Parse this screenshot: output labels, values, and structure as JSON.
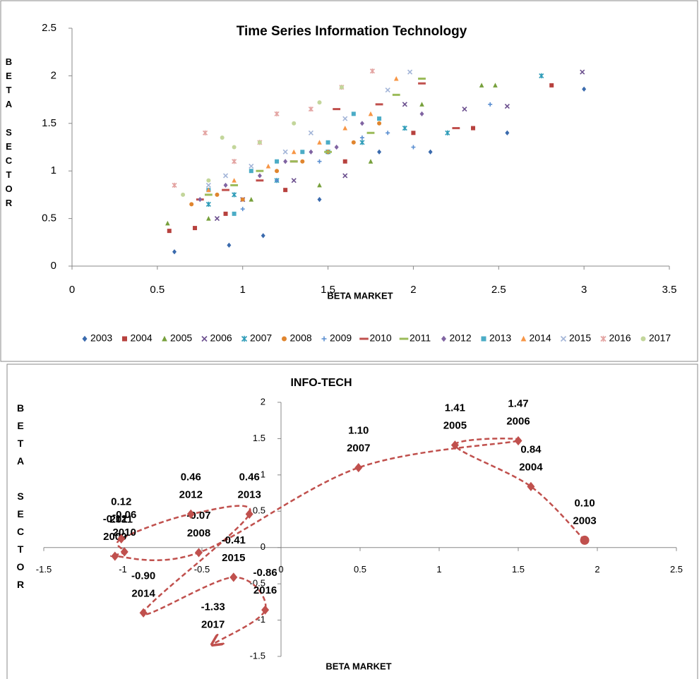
{
  "chart_data": [
    {
      "type": "scatter",
      "title": "Time Series Information Technology",
      "x_label": "BETA MARKET",
      "y_label": "BETA SECTOR",
      "xlim": [
        0,
        3.5
      ],
      "xticks": [
        0,
        0.5,
        1,
        1.5,
        2,
        2.5,
        3,
        3.5
      ],
      "ylim": [
        0,
        2.5
      ],
      "yticks": [
        0,
        0.5,
        1,
        1.5,
        2,
        2.5
      ],
      "legend": "bottom",
      "series": [
        {
          "name": "2003",
          "color": "#3a6aad",
          "marker": "diamond",
          "x": [
            0.6,
            0.92,
            1.12,
            1.45,
            1.8,
            2.1,
            2.55,
            3.0
          ],
          "values": [
            0.15,
            0.22,
            0.32,
            0.7,
            1.2,
            1.2,
            1.4,
            1.86
          ]
        },
        {
          "name": "2004",
          "color": "#b7413e",
          "marker": "square",
          "x": [
            0.57,
            0.72,
            0.9,
            1.25,
            1.6,
            2.0,
            2.35,
            2.81
          ],
          "values": [
            0.37,
            0.4,
            0.55,
            0.8,
            1.1,
            1.4,
            1.45,
            1.9
          ]
        },
        {
          "name": "2005",
          "color": "#77a03c",
          "marker": "triangle",
          "x": [
            0.56,
            0.8,
            1.05,
            1.45,
            1.75,
            2.05,
            2.4,
            2.48
          ],
          "values": [
            0.45,
            0.5,
            0.7,
            0.85,
            1.1,
            1.7,
            1.9,
            1.9
          ]
        },
        {
          "name": "2006",
          "color": "#6b4f8e",
          "marker": "x",
          "x": [
            0.85,
            1.0,
            1.3,
            1.6,
            1.95,
            2.3,
            2.55,
            2.99
          ],
          "values": [
            0.5,
            0.7,
            0.9,
            0.95,
            1.7,
            1.65,
            1.68,
            2.04
          ]
        },
        {
          "name": "2007",
          "color": "#2e9cb8",
          "marker": "star",
          "x": [
            0.8,
            0.95,
            1.2,
            1.5,
            1.7,
            1.95,
            2.2,
            2.75
          ],
          "values": [
            0.65,
            0.75,
            0.9,
            1.2,
            1.3,
            1.45,
            1.4,
            2.0
          ]
        },
        {
          "name": "2008",
          "color": "#e0852e",
          "marker": "circle",
          "x": [
            0.7,
            0.85,
            1.0,
            1.2,
            1.35,
            1.5,
            1.65,
            1.8
          ],
          "values": [
            0.65,
            0.75,
            0.7,
            1.0,
            1.1,
            1.2,
            1.3,
            1.5
          ]
        },
        {
          "name": "2009",
          "color": "#5b8fd1",
          "marker": "plus",
          "x": [
            0.8,
            1.0,
            1.2,
            1.45,
            1.7,
            1.85,
            2.0,
            2.45
          ],
          "values": [
            0.8,
            0.6,
            0.9,
            1.1,
            1.35,
            1.4,
            1.25,
            1.7
          ]
        },
        {
          "name": "2010",
          "color": "#c0504d",
          "marker": "dash",
          "x": [
            0.75,
            0.9,
            1.1,
            1.3,
            1.55,
            1.8,
            2.05,
            2.25
          ],
          "values": [
            0.7,
            0.8,
            0.9,
            1.1,
            1.65,
            1.7,
            1.92,
            1.45
          ]
        },
        {
          "name": "2011",
          "color": "#9bbb59",
          "marker": "dash",
          "x": [
            0.8,
            0.95,
            1.1,
            1.3,
            1.5,
            1.75,
            1.9,
            2.05
          ],
          "values": [
            0.75,
            0.85,
            1.0,
            1.1,
            1.2,
            1.4,
            1.8,
            1.97
          ]
        },
        {
          "name": "2012",
          "color": "#8064a2",
          "marker": "diamond",
          "x": [
            0.75,
            0.9,
            1.1,
            1.25,
            1.4,
            1.55,
            1.7,
            2.05
          ],
          "values": [
            0.7,
            0.85,
            0.95,
            1.1,
            1.2,
            1.25,
            1.5,
            1.6
          ]
        },
        {
          "name": "2013",
          "color": "#4bacc6",
          "marker": "square",
          "x": [
            0.8,
            0.95,
            1.05,
            1.2,
            1.35,
            1.5,
            1.65,
            1.8
          ],
          "values": [
            0.8,
            0.55,
            1.0,
            1.1,
            1.2,
            1.3,
            1.6,
            1.55
          ]
        },
        {
          "name": "2014",
          "color": "#f79646",
          "marker": "triangle",
          "x": [
            0.8,
            0.95,
            1.15,
            1.3,
            1.45,
            1.6,
            1.75,
            1.9
          ],
          "values": [
            0.8,
            0.9,
            1.05,
            1.2,
            1.3,
            1.45,
            1.6,
            1.97
          ]
        },
        {
          "name": "2015",
          "color": "#a3b5d8",
          "marker": "x",
          "x": [
            0.8,
            0.9,
            1.05,
            1.25,
            1.4,
            1.6,
            1.85,
            1.98
          ],
          "values": [
            0.85,
            0.95,
            1.05,
            1.2,
            1.4,
            1.55,
            1.85,
            2.04
          ]
        },
        {
          "name": "2016",
          "color": "#e3a3a1",
          "marker": "star",
          "x": [
            0.6,
            0.78,
            0.95,
            1.1,
            1.2,
            1.4,
            1.58,
            1.76
          ],
          "values": [
            0.85,
            1.4,
            1.1,
            1.3,
            1.6,
            1.65,
            1.88,
            2.05
          ]
        },
        {
          "name": "2017",
          "color": "#c3d69b",
          "marker": "circle",
          "x": [
            0.65,
            0.8,
            0.88,
            0.95,
            1.1,
            1.3,
            1.45,
            1.58
          ],
          "values": [
            0.75,
            0.9,
            1.35,
            1.25,
            1.3,
            1.5,
            1.72,
            1.88
          ]
        }
      ]
    },
    {
      "type": "path",
      "title": "INFO-TECH",
      "x_label": "BETA MARKET",
      "y_label": "BETA SECTOR",
      "xlim": [
        -1.5,
        2.5
      ],
      "xticks": [
        -1.5,
        -1,
        -0.5,
        0,
        0.5,
        1,
        1.5,
        2,
        2.5
      ],
      "ylim": [
        -1.5,
        2
      ],
      "yticks": [
        -1.5,
        -1,
        -0.5,
        0,
        0.5,
        1,
        1.5,
        2
      ],
      "color": "#c0504d",
      "labels": [
        "2003",
        "2004",
        "2005",
        "2006",
        "2007",
        "2008",
        "2009",
        "2010",
        "2011",
        "2012",
        "2013",
        "2014",
        "2015",
        "2016",
        "2017"
      ],
      "x": [
        1.92,
        1.58,
        1.1,
        1.5,
        0.49,
        -0.52,
        -1.05,
        -0.99,
        -1.01,
        -0.57,
        -0.2,
        -0.87,
        -0.3,
        -0.1,
        -0.43
      ],
      "values": [
        0.1,
        0.84,
        1.41,
        1.47,
        1.1,
        -0.07,
        -0.12,
        -0.06,
        0.12,
        0.46,
        0.46,
        -0.9,
        -0.41,
        -0.86,
        -1.33
      ],
      "value_labels": [
        "0.10",
        "0.84",
        "1.41",
        "1.47",
        "1.10",
        "-0.07",
        "-0.12",
        "-0.06",
        "0.12",
        "0.46",
        "0.46",
        "-0.90",
        "-0.41",
        "-0.86",
        "-1.33"
      ]
    }
  ]
}
